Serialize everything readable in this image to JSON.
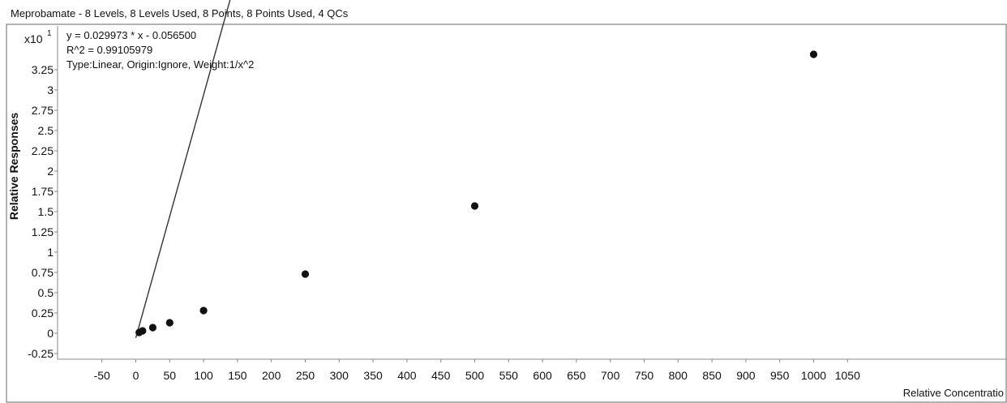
{
  "chart_data": {
    "type": "scatter",
    "title": "Meprobamate - 8 Levels, 8 Levels Used, 8 Points, 8 Points Used, 4 QCs",
    "xlabel": "Relative Concentratio",
    "ylabel": "Relative Responses",
    "y_multiplier": "x10",
    "y_multiplier_exp": "1",
    "annotations": [
      "y = 0.029973 * x  - 0.056500",
      "R^2 = 0.99105979",
      "Type:Linear, Origin:Ignore, Weight:1/x^2"
    ],
    "xlim": [
      -100,
      1090
    ],
    "ylim": [
      -0.4,
      3.7
    ],
    "x_ticks": [
      -50,
      0,
      50,
      100,
      150,
      200,
      250,
      300,
      350,
      400,
      450,
      500,
      550,
      600,
      650,
      700,
      750,
      800,
      850,
      900,
      950,
      1000,
      1050
    ],
    "y_ticks": [
      -0.25,
      0,
      0.25,
      0.5,
      0.75,
      1,
      1.25,
      1.5,
      1.75,
      2,
      2.25,
      2.5,
      2.75,
      3,
      3.25
    ],
    "fit": {
      "slope": 0.029973,
      "intercept": -0.0565
    },
    "series": [
      {
        "x": [
          5,
          10,
          25,
          50,
          100,
          250,
          500,
          1000
        ],
        "y": [
          0.01,
          0.03,
          0.07,
          0.13,
          0.28,
          0.73,
          1.57,
          3.44
        ]
      }
    ],
    "grid": false
  }
}
